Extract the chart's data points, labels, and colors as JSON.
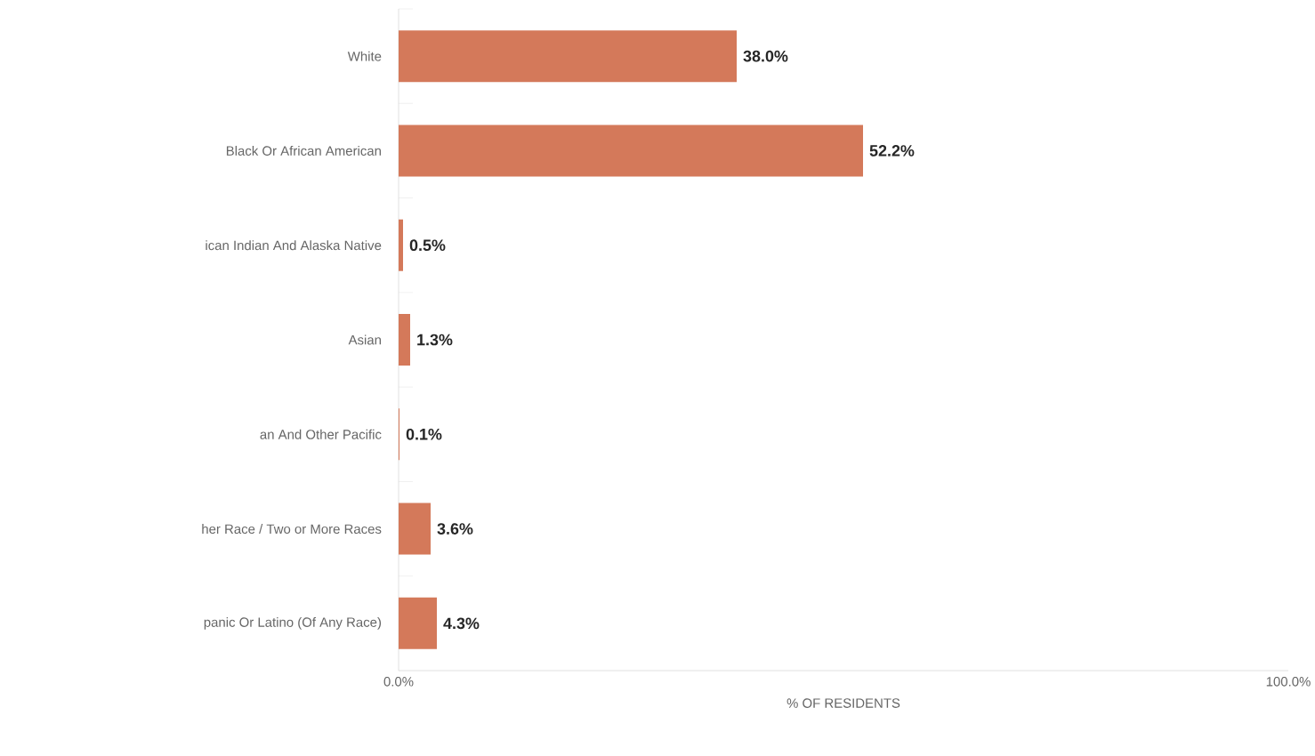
{
  "chart_data": {
    "type": "bar",
    "orientation": "horizontal",
    "xlabel": "% OF RESIDENTS",
    "categories": [
      "White",
      "Black Or African American",
      "ican Indian And Alaska Native",
      "Asian",
      "an And Other Pacific",
      "her Race / Two or More Races",
      "panic Or Latino (Of Any Race)"
    ],
    "values": [
      38.0,
      52.2,
      0.5,
      1.3,
      0.1,
      3.6,
      4.3
    ],
    "value_labels": [
      "38.0%",
      "52.2%",
      "0.5%",
      "1.3%",
      "0.1%",
      "3.6%",
      "4.3%"
    ],
    "color": "#d4795a",
    "xlim": [
      0,
      100
    ],
    "xticks": [
      {
        "value": 0,
        "label": "0.0%"
      },
      {
        "value": 100,
        "label": "100.0%"
      }
    ]
  }
}
